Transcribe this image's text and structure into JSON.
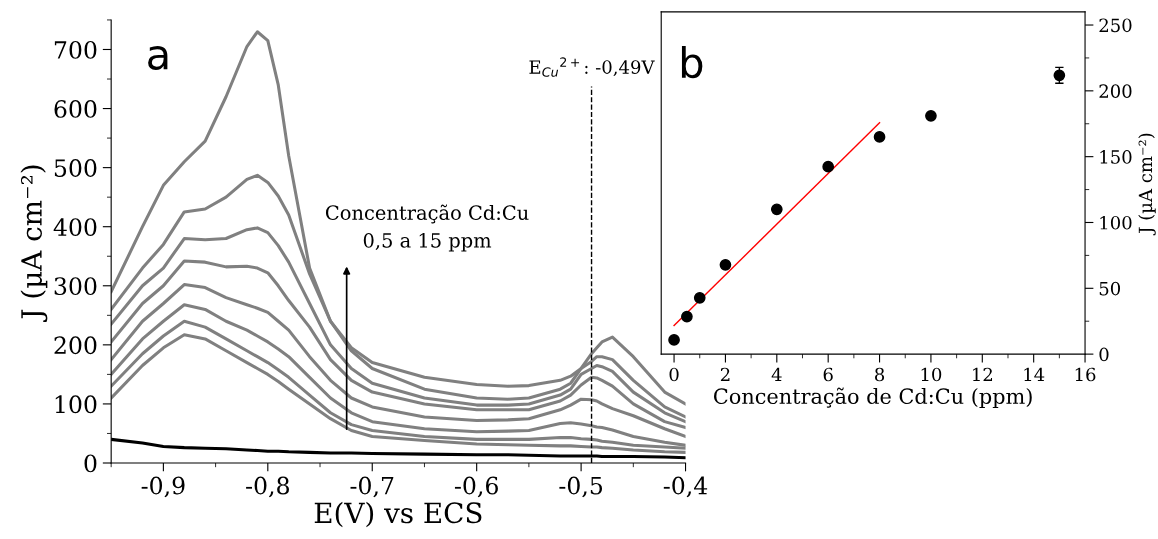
{
  "chart_data": [
    {
      "type": "line",
      "title": "a",
      "xlabel": "E(V) vs ECS",
      "ylabel": "J (µA cm⁻²)",
      "xlim": [
        -0.95,
        -0.4
      ],
      "xticks": [
        {
          "value": -0.9,
          "label": "-0,9"
        },
        {
          "value": -0.8,
          "label": "-0,8"
        },
        {
          "value": -0.7,
          "label": "-0,7"
        },
        {
          "value": -0.6,
          "label": "-0,6"
        },
        {
          "value": -0.5,
          "label": "-0,5"
        },
        {
          "value": -0.4,
          "label": "-0,4"
        }
      ],
      "ylim": [
        0,
        750
      ],
      "yticks": [
        0,
        100,
        200,
        300,
        400,
        500,
        600,
        700
      ],
      "grid": false,
      "legend": false,
      "x": [
        -0.95,
        -0.92,
        -0.9,
        -0.88,
        -0.86,
        -0.84,
        -0.82,
        -0.81,
        -0.8,
        -0.79,
        -0.78,
        -0.76,
        -0.74,
        -0.72,
        -0.7,
        -0.65,
        -0.6,
        -0.57,
        -0.55,
        -0.52,
        -0.51,
        -0.5,
        -0.49,
        -0.485,
        -0.48,
        -0.47,
        -0.45,
        -0.42,
        -0.4
      ],
      "series": [
        {
          "color": "#000000",
          "values": [
            40,
            34,
            28,
            26,
            25,
            24,
            22,
            21,
            20,
            20,
            19,
            18,
            17,
            17,
            16,
            15,
            14,
            14,
            13,
            12,
            12,
            12,
            12,
            12,
            11,
            11,
            11,
            10,
            9
          ]
        },
        {
          "color": "#808080",
          "values": [
            110,
            165,
            195,
            217,
            210,
            190,
            170,
            160,
            150,
            138,
            125,
            100,
            75,
            55,
            45,
            38,
            32,
            31,
            30,
            29,
            29,
            28,
            27,
            27,
            26,
            25,
            22,
            19,
            18
          ]
        },
        {
          "color": "#808080",
          "values": [
            130,
            185,
            215,
            240,
            230,
            210,
            190,
            180,
            170,
            158,
            145,
            115,
            85,
            65,
            55,
            45,
            40,
            40,
            40,
            43,
            43,
            41,
            40,
            39,
            37,
            35,
            30,
            27,
            25
          ]
        },
        {
          "color": "#808080",
          "values": [
            150,
            210,
            240,
            268,
            260,
            240,
            225,
            215,
            205,
            193,
            180,
            145,
            110,
            85,
            70,
            58,
            53,
            54,
            55,
            67,
            68,
            66,
            63,
            61,
            60,
            56,
            45,
            35,
            30
          ]
        },
        {
          "color": "#808080",
          "values": [
            175,
            240,
            270,
            302,
            297,
            280,
            268,
            262,
            255,
            240,
            225,
            180,
            140,
            110,
            95,
            78,
            72,
            73,
            75,
            90,
            98,
            108,
            107,
            105,
            100,
            92,
            80,
            58,
            45
          ]
        },
        {
          "color": "#808080",
          "values": [
            205,
            270,
            300,
            342,
            340,
            332,
            333,
            330,
            322,
            300,
            275,
            230,
            175,
            140,
            120,
            100,
            90,
            90,
            90,
            105,
            115,
            132,
            145,
            144,
            140,
            130,
            100,
            70,
            60
          ]
        },
        {
          "color": "#808080",
          "values": [
            235,
            300,
            330,
            380,
            378,
            380,
            395,
            398,
            390,
            368,
            340,
            270,
            200,
            160,
            135,
            110,
            98,
            98,
            100,
            115,
            125,
            150,
            160,
            165,
            163,
            155,
            120,
            85,
            70
          ]
        },
        {
          "color": "#808080",
          "values": [
            260,
            330,
            370,
            425,
            430,
            450,
            480,
            487,
            475,
            452,
            420,
            320,
            240,
            190,
            160,
            125,
            110,
            108,
            110,
            125,
            135,
            160,
            172,
            180,
            180,
            175,
            140,
            95,
            78
          ]
        },
        {
          "color": "#808080",
          "values": [
            290,
            400,
            470,
            510,
            545,
            620,
            705,
            730,
            715,
            640,
            520,
            330,
            240,
            195,
            170,
            145,
            133,
            130,
            131,
            140,
            147,
            160,
            185,
            195,
            205,
            213,
            180,
            120,
            100
          ]
        }
      ],
      "ref_lines": [
        {
          "axis": "x",
          "value": -0.49,
          "label": "E$_{Cu}$$^{2+}$: -0,49V",
          "color": "#000000",
          "line_style": "dashed"
        }
      ],
      "annotations": [
        "Concentração Cd:Cu\n0,5 a 15 ppm"
      ]
    },
    {
      "type": "scatter",
      "title": "b",
      "xlabel": "Concentração de Cd:Cu (ppm)",
      "ylabel": "J (µA cm⁻²)",
      "xlim": [
        -0.5,
        16
      ],
      "xticks": [
        0,
        2,
        4,
        6,
        8,
        10,
        12,
        14,
        16
      ],
      "ylim": [
        0,
        260
      ],
      "yticks": [
        0,
        50,
        100,
        150,
        200,
        250
      ],
      "grid": false,
      "legend": false,
      "series": [
        {
          "type": "scatter",
          "color": "#000000",
          "marker": "circle",
          "x": [
            0,
            0.5,
            1,
            2,
            4,
            6,
            8,
            10,
            15
          ],
          "values": [
            10.8,
            28.5,
            42.8,
            67.8,
            110,
            142.4,
            165,
            181,
            211.8
          ],
          "errors": [
            null,
            null,
            null,
            null,
            null,
            null,
            null,
            null,
            6
          ]
        },
        {
          "type": "line",
          "color": "#ff0000",
          "x": [
            0,
            8
          ],
          "values": [
            21.7,
            175.7
          ]
        }
      ]
    }
  ]
}
